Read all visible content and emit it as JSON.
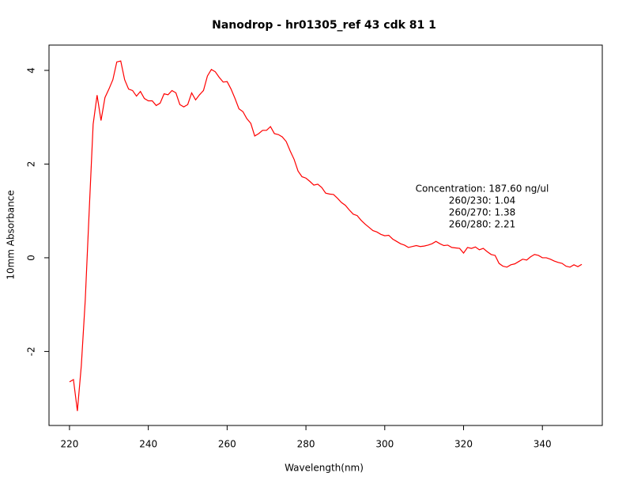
{
  "chart_data": {
    "type": "line",
    "title": "Nanodrop - hr01305_ref 43 cdk 81  1",
    "x_label": "Wavelength(nm)",
    "y_label": "10mm Absorbance",
    "annotations": [
      "Concentration: 187.60 ng/ul",
      "260/230: 1.04",
      "260/270: 1.38",
      "260/280: 2.21"
    ],
    "x": [
      220,
      221,
      222,
      223,
      224,
      225,
      226,
      227,
      228,
      229,
      230,
      231,
      232,
      233,
      234,
      235,
      236,
      237,
      238,
      239,
      240,
      241,
      242,
      243,
      244,
      245,
      246,
      247,
      248,
      249,
      250,
      251,
      252,
      253,
      254,
      255,
      256,
      257,
      258,
      259,
      260,
      261,
      262,
      263,
      264,
      265,
      266,
      267,
      268,
      269,
      270,
      271,
      272,
      273,
      274,
      275,
      276,
      277,
      278,
      279,
      280,
      281,
      282,
      283,
      284,
      285,
      286,
      287,
      288,
      289,
      290,
      291,
      292,
      293,
      294,
      295,
      296,
      297,
      298,
      299,
      300,
      301,
      302,
      303,
      304,
      305,
      306,
      307,
      308,
      309,
      310,
      311,
      312,
      313,
      314,
      315,
      316,
      317,
      318,
      319,
      320,
      321,
      322,
      323,
      324,
      325,
      326,
      327,
      328,
      329,
      330,
      331,
      332,
      333,
      334,
      335,
      336,
      337,
      338,
      339,
      340,
      341,
      342,
      343,
      344,
      345,
      346,
      347,
      348,
      349,
      350
    ],
    "series": [
      {
        "name": "Absorbance",
        "color": "#ff0000",
        "values": [
          -2.65,
          -2.6,
          -3.27,
          -2.3,
          -0.9,
          1.0,
          2.85,
          3.47,
          2.93,
          3.42,
          3.6,
          3.8,
          4.18,
          4.2,
          3.8,
          3.6,
          3.57,
          3.45,
          3.55,
          3.4,
          3.35,
          3.35,
          3.25,
          3.3,
          3.5,
          3.48,
          3.57,
          3.52,
          3.27,
          3.22,
          3.27,
          3.52,
          3.37,
          3.48,
          3.57,
          3.88,
          4.02,
          3.97,
          3.85,
          3.75,
          3.76,
          3.6,
          3.4,
          3.18,
          3.12,
          2.97,
          2.87,
          2.6,
          2.65,
          2.72,
          2.72,
          2.8,
          2.65,
          2.63,
          2.58,
          2.48,
          2.28,
          2.1,
          1.85,
          1.73,
          1.7,
          1.63,
          1.55,
          1.57,
          1.5,
          1.38,
          1.36,
          1.35,
          1.27,
          1.18,
          1.12,
          1.02,
          0.93,
          0.9,
          0.8,
          0.72,
          0.65,
          0.58,
          0.55,
          0.5,
          0.47,
          0.48,
          0.4,
          0.35,
          0.3,
          0.27,
          0.22,
          0.24,
          0.26,
          0.24,
          0.25,
          0.27,
          0.3,
          0.35,
          0.3,
          0.26,
          0.27,
          0.22,
          0.21,
          0.2,
          0.1,
          0.22,
          0.2,
          0.23,
          0.17,
          0.2,
          0.13,
          0.07,
          0.05,
          -0.12,
          -0.18,
          -0.2,
          -0.15,
          -0.13,
          -0.08,
          -0.03,
          -0.05,
          0.02,
          0.07,
          0.05,
          0,
          0,
          -0.03,
          -0.07,
          -0.1,
          -0.12,
          -0.18,
          -0.2,
          -0.15,
          -0.19,
          -0.14
        ]
      }
    ],
    "xlim": [
      214.8,
      355.2
    ],
    "ylim": [
      -3.58,
      4.54
    ],
    "xticks": [
      220,
      240,
      260,
      280,
      300,
      320,
      340
    ],
    "yticks": [
      -2,
      0,
      2,
      4
    ]
  }
}
